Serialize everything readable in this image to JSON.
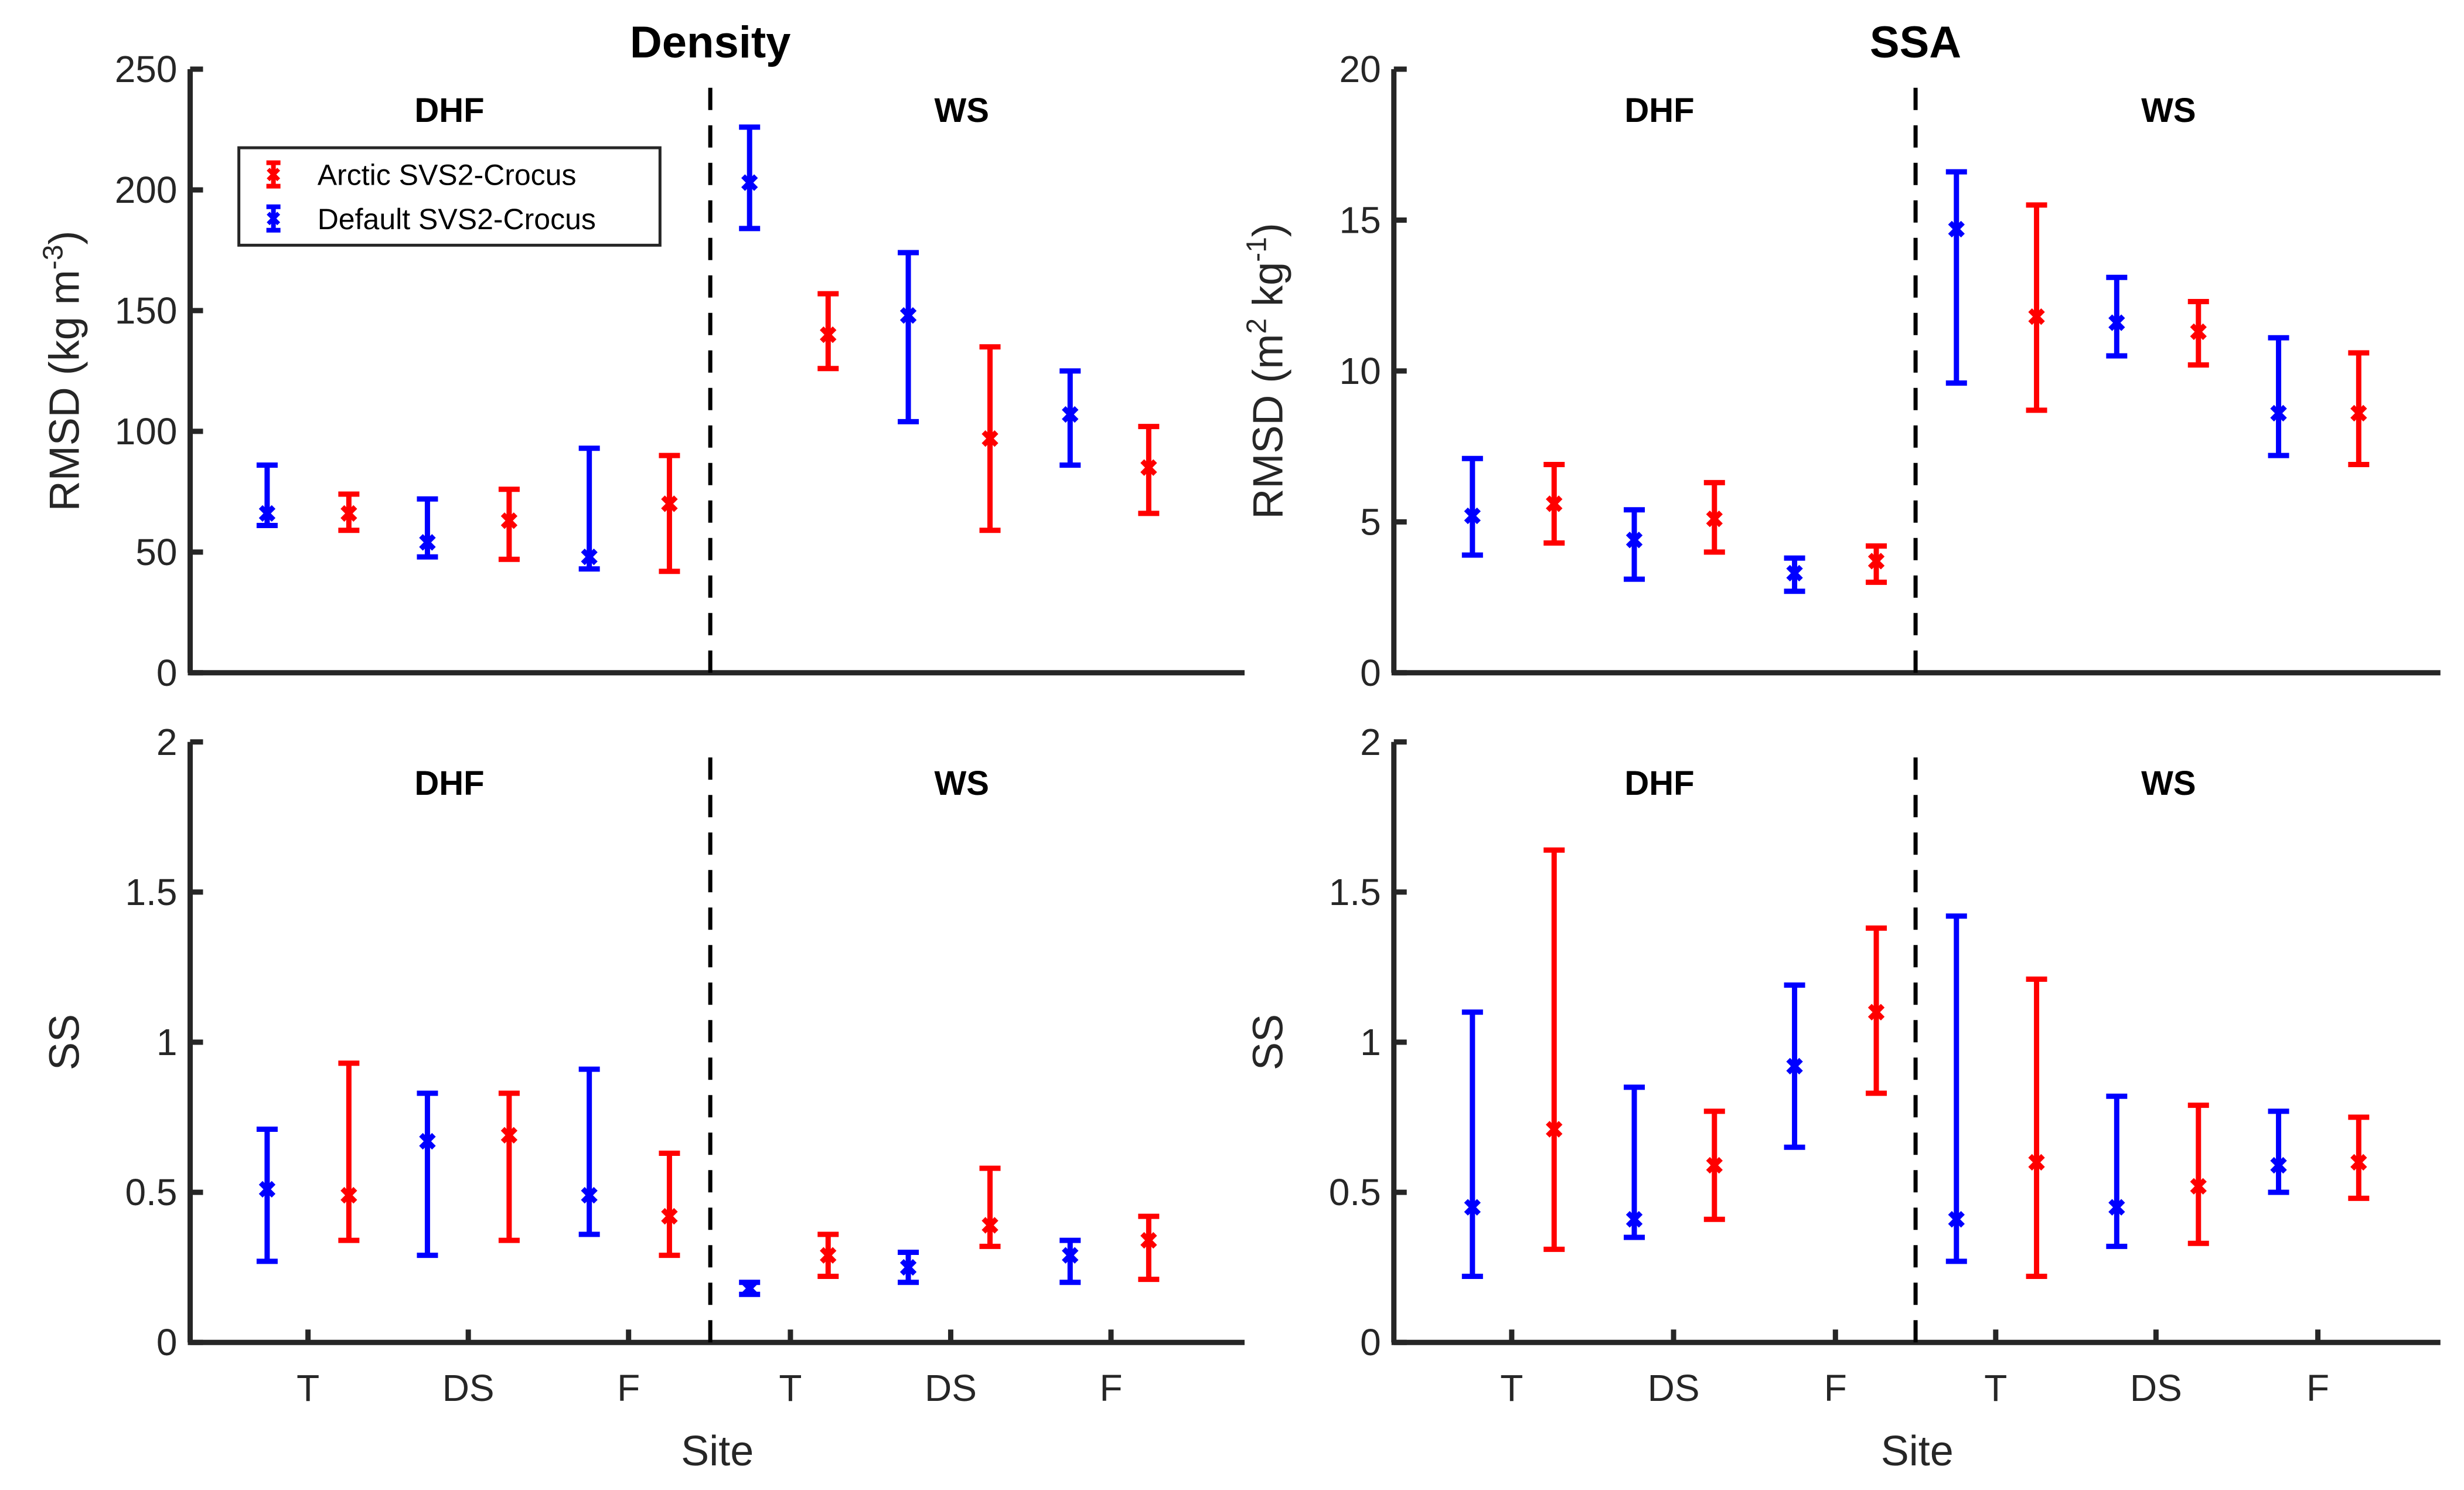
{
  "chart_data": [
    {
      "type": "errorbar",
      "id": "density-rmsd",
      "title": "Density",
      "xlabel": "",
      "ylabel": "RMSD (kg m^-3)",
      "ylabel_main": "RMSD (kg m",
      "ylabel_sup": "-3",
      "ylabel_end": ")",
      "ylim": [
        0,
        250
      ],
      "yticks": [
        0,
        50,
        100,
        150,
        200,
        250
      ],
      "ytick_labels": [
        "0",
        "50",
        "100",
        "150",
        "200",
        "250"
      ],
      "regions": [
        "DHF",
        "WS"
      ],
      "categories": [
        "T",
        "DS",
        "F",
        "T",
        "DS",
        "F"
      ],
      "show_xticks": false,
      "legend": {
        "position": "top-left",
        "entries": [
          "Arctic SVS2-Crocus",
          "Default SVS2-Crocus"
        ]
      },
      "series": [
        {
          "name": "Default SVS2-Crocus",
          "color": "#0000FF",
          "values": [
            66,
            54,
            48,
            203,
            148,
            107
          ],
          "lower": [
            61,
            48,
            43,
            184,
            104,
            86
          ],
          "upper": [
            86,
            72,
            93,
            226,
            174,
            125
          ]
        },
        {
          "name": "Arctic SVS2-Crocus",
          "color": "#FF0000",
          "values": [
            66,
            63,
            70,
            140,
            97,
            85
          ],
          "lower": [
            59,
            47,
            42,
            126,
            59,
            66
          ],
          "upper": [
            74,
            76,
            90,
            157,
            135,
            102
          ]
        }
      ]
    },
    {
      "type": "errorbar",
      "id": "ssa-rmsd",
      "title": "SSA",
      "xlabel": "",
      "ylabel": "RMSD (m^2 kg^-1)",
      "ylim": [
        0,
        20
      ],
      "yticks": [
        0,
        5,
        10,
        15,
        20
      ],
      "ytick_labels": [
        "0",
        "5",
        "10",
        "15",
        "20"
      ],
      "regions": [
        "DHF",
        "WS"
      ],
      "categories": [
        "T",
        "DS",
        "F",
        "T",
        "DS",
        "F"
      ],
      "show_xticks": false,
      "series": [
        {
          "name": "Default SVS2-Crocus",
          "color": "#0000FF",
          "values": [
            5.2,
            4.4,
            3.3,
            14.7,
            11.6,
            8.6
          ],
          "lower": [
            3.9,
            3.1,
            2.7,
            9.6,
            10.5,
            7.2
          ],
          "upper": [
            7.1,
            5.4,
            3.8,
            16.6,
            13.1,
            11.1
          ]
        },
        {
          "name": "Arctic SVS2-Crocus",
          "color": "#FF0000",
          "values": [
            5.6,
            5.1,
            3.7,
            11.8,
            11.3,
            8.6
          ],
          "lower": [
            4.3,
            4.0,
            3.0,
            8.7,
            10.2,
            6.9
          ],
          "upper": [
            6.9,
            6.3,
            4.2,
            15.5,
            12.3,
            10.6
          ]
        }
      ]
    },
    {
      "type": "errorbar",
      "id": "density-ss",
      "title": "",
      "xlabel": "Site",
      "ylabel": "SS",
      "ylim": [
        0,
        2
      ],
      "yticks": [
        0,
        0.5,
        1,
        1.5,
        2
      ],
      "ytick_labels": [
        "0",
        "0.5",
        "1",
        "1.5",
        "2"
      ],
      "regions": [
        "DHF",
        "WS"
      ],
      "categories": [
        "T",
        "DS",
        "F",
        "T",
        "DS",
        "F"
      ],
      "show_xticks": true,
      "series": [
        {
          "name": "Default SVS2-Crocus",
          "color": "#0000FF",
          "values": [
            0.51,
            0.67,
            0.49,
            0.18,
            0.25,
            0.29
          ],
          "lower": [
            0.27,
            0.29,
            0.36,
            0.16,
            0.2,
            0.2
          ],
          "upper": [
            0.71,
            0.83,
            0.91,
            0.2,
            0.3,
            0.34
          ]
        },
        {
          "name": "Arctic SVS2-Crocus",
          "color": "#FF0000",
          "values": [
            0.49,
            0.69,
            0.42,
            0.29,
            0.39,
            0.34
          ],
          "lower": [
            0.34,
            0.34,
            0.29,
            0.22,
            0.32,
            0.21
          ],
          "upper": [
            0.93,
            0.83,
            0.63,
            0.36,
            0.58,
            0.42
          ]
        }
      ]
    },
    {
      "type": "errorbar",
      "id": "ssa-ss",
      "title": "",
      "xlabel": "Site",
      "ylabel": "SS",
      "ylim": [
        0,
        2
      ],
      "yticks": [
        0,
        0.5,
        1,
        1.5,
        2
      ],
      "ytick_labels": [
        "0",
        "0.5",
        "1",
        "1.5",
        "2"
      ],
      "regions": [
        "DHF",
        "WS"
      ],
      "categories": [
        "T",
        "DS",
        "F",
        "T",
        "DS",
        "F"
      ],
      "show_xticks": true,
      "series": [
        {
          "name": "Default SVS2-Crocus",
          "color": "#0000FF",
          "values": [
            0.45,
            0.41,
            0.92,
            0.41,
            0.45,
            0.59
          ],
          "lower": [
            0.22,
            0.35,
            0.65,
            0.27,
            0.32,
            0.5
          ],
          "upper": [
            1.1,
            0.85,
            1.19,
            1.42,
            0.82,
            0.77
          ]
        },
        {
          "name": "Arctic SVS2-Crocus",
          "color": "#FF0000",
          "values": [
            0.71,
            0.59,
            1.1,
            0.6,
            0.52,
            0.6
          ],
          "lower": [
            0.31,
            0.41,
            0.83,
            0.22,
            0.33,
            0.48
          ],
          "upper": [
            1.64,
            0.77,
            1.38,
            1.21,
            0.79,
            0.75
          ]
        }
      ]
    }
  ]
}
